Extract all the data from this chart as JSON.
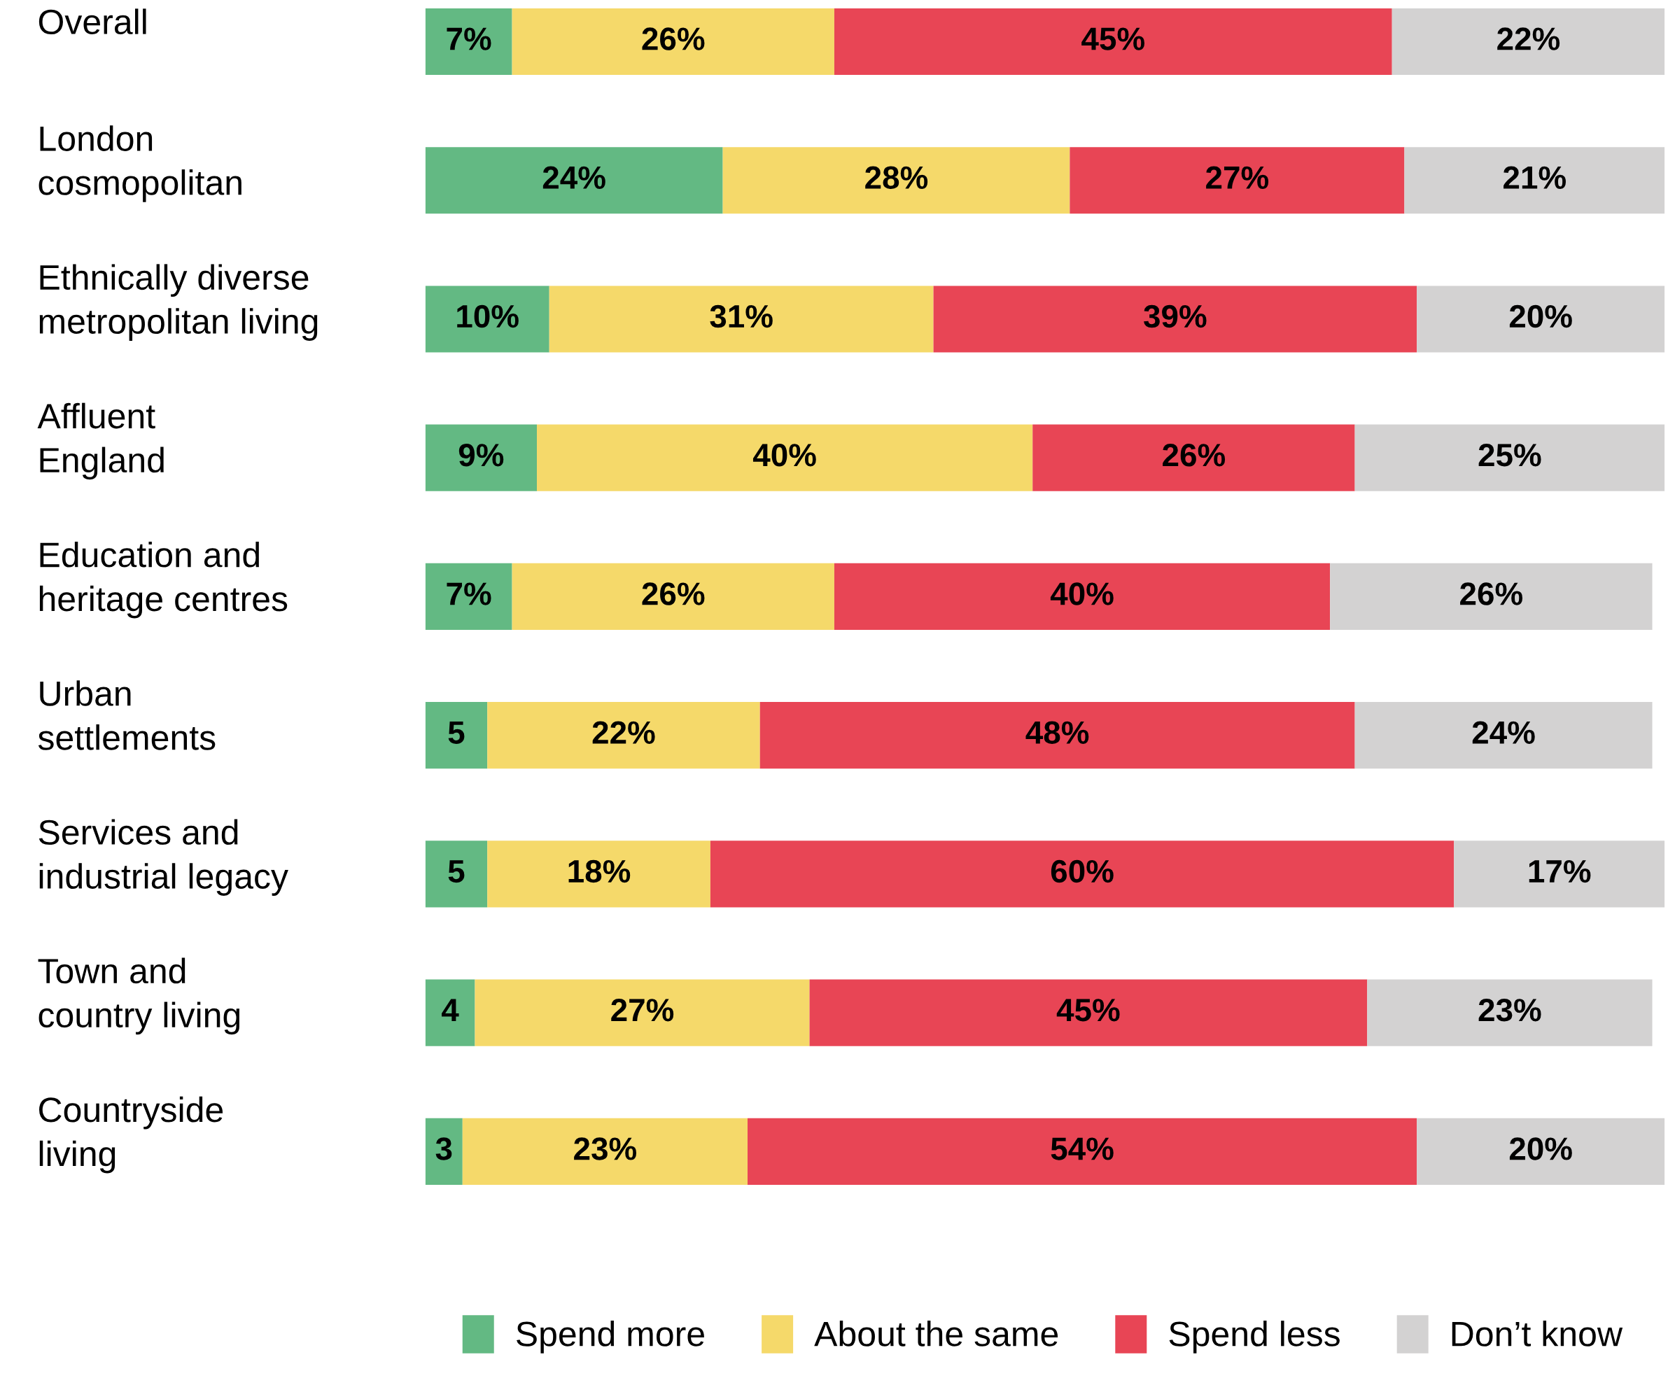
{
  "chart_data": {
    "type": "bar",
    "orientation": "horizontal",
    "stacked": true,
    "legend": "bottom",
    "categories": [
      "Overall",
      "London\ncosmopolitan",
      "Ethnically diverse\nmetropolitan living",
      "Affluent\nEngland",
      "Education and\nheritage centres",
      "Urban\nsettlements",
      "Services and\nindustrial legacy",
      "Town and\ncountry living",
      "Countryside\nliving"
    ],
    "series": [
      {
        "name": "Spend more",
        "color": "#63b983",
        "values": [
          7,
          24,
          10,
          9,
          7,
          5,
          5,
          4,
          3
        ],
        "value_labels": [
          "7%",
          "24%",
          "10%",
          "9%",
          "7%",
          "5",
          "5",
          "4",
          "3"
        ]
      },
      {
        "name": "About the same",
        "color": "#f5d96a",
        "values": [
          26,
          28,
          31,
          40,
          26,
          22,
          18,
          27,
          23
        ],
        "value_labels": [
          "26%",
          "28%",
          "31%",
          "40%",
          "26%",
          "22%",
          "18%",
          "27%",
          "23%"
        ]
      },
      {
        "name": "Spend less",
        "color": "#e84555",
        "values": [
          45,
          27,
          39,
          26,
          40,
          48,
          60,
          45,
          54
        ],
        "value_labels": [
          "45%",
          "27%",
          "39%",
          "26%",
          "40%",
          "48%",
          "60%",
          "45%",
          "54%"
        ]
      },
      {
        "name": "Don’t know",
        "color": "#d3d2d2",
        "values": [
          22,
          21,
          20,
          25,
          26,
          24,
          17,
          23,
          20
        ],
        "value_labels": [
          "22%",
          "21%",
          "20%",
          "25%",
          "26%",
          "24%",
          "17%",
          "23%",
          "20%"
        ]
      }
    ]
  }
}
